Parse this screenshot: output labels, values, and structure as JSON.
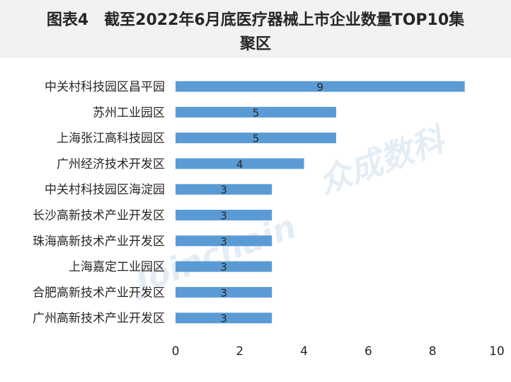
{
  "header": {
    "prefix": "图表4",
    "title_line1": "截至2022年6月底医疗器械上市企业数量TOP10集",
    "title_line2": "聚区"
  },
  "watermark": {
    "brand": "Joinchain",
    "brand_cn": "众成数科"
  },
  "colors": {
    "bar": "#5b9bd5",
    "title_band": "#f2f2f2",
    "text": "#262626"
  },
  "chart_data": {
    "type": "bar",
    "orientation": "horizontal",
    "title": "截至2022年6月底医疗器械上市企业数量TOP10集聚区",
    "categories": [
      "中关村科技园区昌平园",
      "苏州工业园区",
      "上海张江高科技园区",
      "广州经济技术开发区",
      "中关村科技园区海淀园",
      "长沙高新技术产业开发区",
      "珠海高新技术产业开发区",
      "上海嘉定工业园区",
      "合肥高新技术产业开发区",
      "广州高新技术产业开发区"
    ],
    "values": [
      9,
      5,
      5,
      4,
      3,
      3,
      3,
      3,
      3,
      3
    ],
    "xlim": [
      0,
      10
    ],
    "xticks": [
      "0",
      "2",
      "4",
      "6",
      "8",
      "10"
    ],
    "data_labels": true,
    "grid": false,
    "legend": "none"
  }
}
